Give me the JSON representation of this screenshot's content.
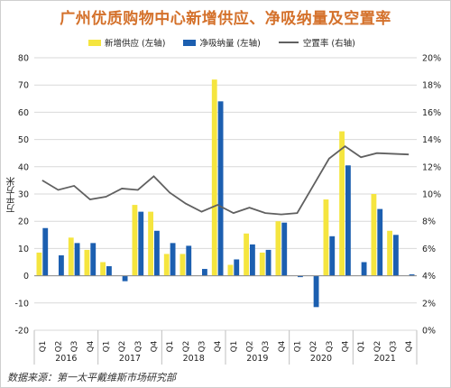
{
  "title": "广州优质购物中心新增供应、净吸纳量及空置率",
  "source": "数据来源：第一太平戴维斯市场研究部",
  "colors": {
    "supply": "#f5e53f",
    "absorption": "#1c5fb0",
    "vacancy": "#606060",
    "title": "#d4712b"
  },
  "chart_data": {
    "type": "bar",
    "title": "广州优质购物中心新增供应、净吸纳量及空置率",
    "ylabel": "万平方米",
    "ylabel_right": "",
    "ylim": [
      -20,
      80
    ],
    "y_ticks": [
      "80",
      "70",
      "60",
      "50",
      "40",
      "30",
      "20",
      "10",
      "0",
      "-10",
      "-20"
    ],
    "y_tick_values": [
      80,
      70,
      60,
      50,
      40,
      30,
      20,
      10,
      0,
      -10,
      -20
    ],
    "ylim_right": [
      0,
      20
    ],
    "y_right_ticks": [
      "20%",
      "18%",
      "16%",
      "14%",
      "12%",
      "10%",
      "8%",
      "6%",
      "4%",
      "2%",
      "0%"
    ],
    "y_right_tick_values": [
      20,
      18,
      16,
      14,
      12,
      10,
      8,
      6,
      4,
      2,
      0
    ],
    "grid": true,
    "legend_position": "top",
    "categories": [
      "Q1",
      "Q2",
      "Q3",
      "Q4",
      "Q1",
      "Q2",
      "Q3",
      "Q4",
      "Q1",
      "Q2",
      "Q3",
      "Q4",
      "Q1",
      "Q2",
      "Q3",
      "Q4",
      "Q1",
      "Q2",
      "Q3",
      "Q4",
      "Q1",
      "Q2",
      "Q3",
      "Q4"
    ],
    "years": [
      "2016",
      "2017",
      "2018",
      "2019",
      "2020",
      "2021"
    ],
    "series": [
      {
        "name": "新增供应 (左轴)",
        "type": "bar",
        "axis": "left",
        "values": [
          8.5,
          0,
          14,
          9.5,
          5,
          0,
          26,
          23.5,
          8,
          8,
          0,
          72,
          4,
          15.5,
          8.5,
          20,
          0,
          0,
          28,
          53,
          0,
          30,
          16.5,
          0
        ]
      },
      {
        "name": "净吸纳量 (左轴)",
        "type": "bar",
        "axis": "left",
        "values": [
          17.5,
          7.5,
          12,
          12,
          3.5,
          -2,
          23.5,
          16.5,
          12,
          11,
          2.5,
          64,
          6,
          11.5,
          9.5,
          19.5,
          -0.5,
          -11.5,
          14.5,
          40.5,
          5,
          24.5,
          15,
          0.5
        ]
      },
      {
        "name": "空置率 (右轴)",
        "type": "line",
        "axis": "right",
        "values": [
          11.0,
          10.3,
          10.6,
          9.6,
          9.8,
          10.4,
          10.3,
          11.3,
          10.1,
          9.3,
          8.7,
          9.2,
          8.6,
          9.0,
          8.6,
          8.5,
          8.6,
          10.6,
          12.6,
          13.5,
          12.7,
          13.0,
          12.95,
          12.9
        ]
      }
    ]
  }
}
